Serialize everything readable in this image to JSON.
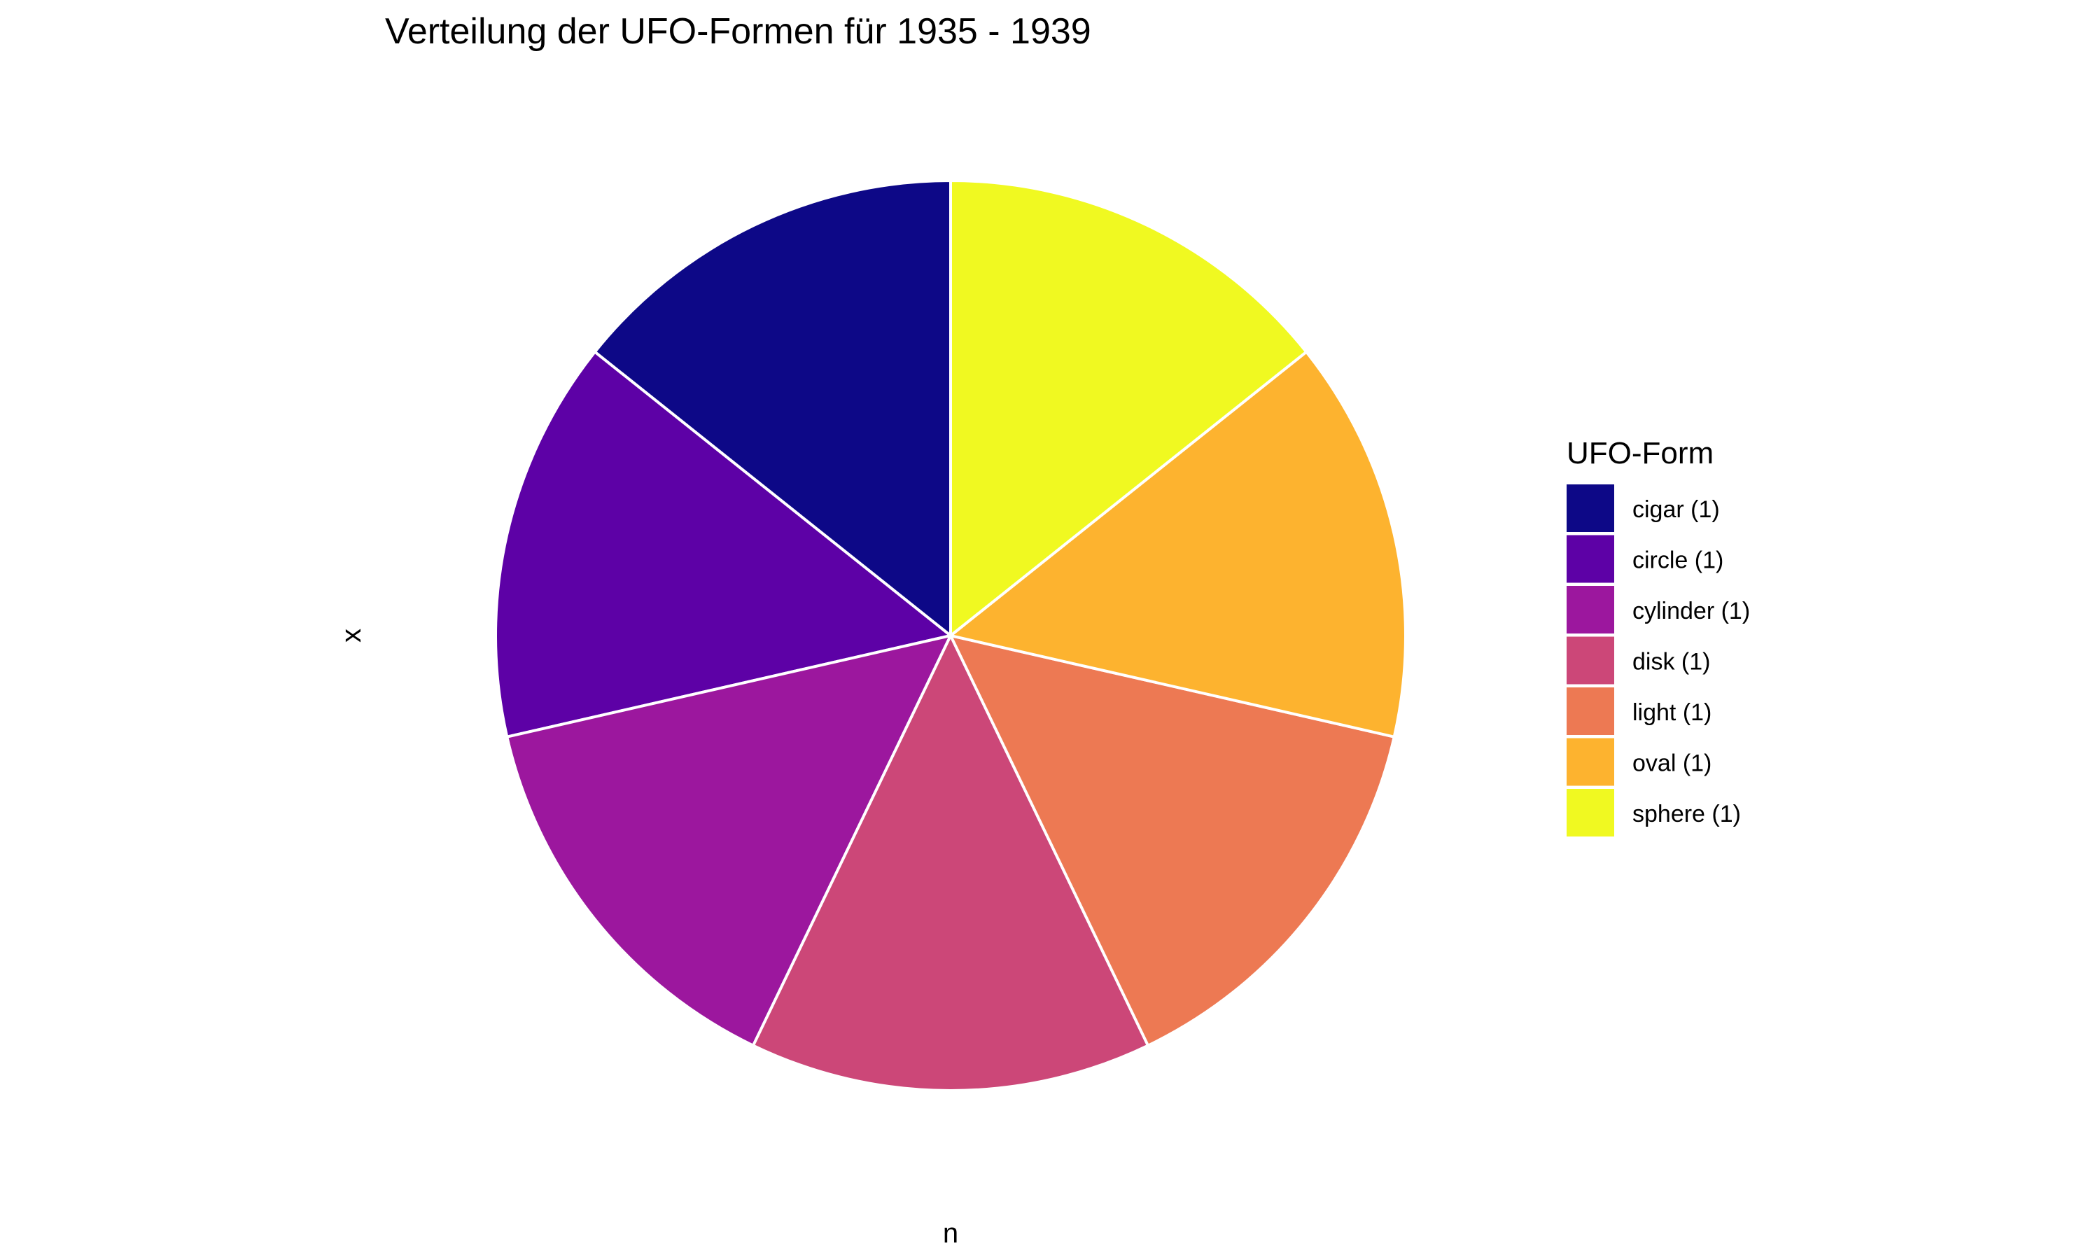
{
  "chart_data": {
    "type": "pie",
    "title": "Verteilung der UFO-Formen für 1935 - 1939",
    "xlabel": "n",
    "ylabel": "x",
    "legend_title": "UFO-Form",
    "legend_position": "right",
    "slices": [
      {
        "category": "cigar",
        "label": "cigar (1)",
        "value": 1,
        "color": "#0D0887"
      },
      {
        "category": "circle",
        "label": "circle (1)",
        "value": 1,
        "color": "#5D01A6"
      },
      {
        "category": "cylinder",
        "label": "cylinder (1)",
        "value": 1,
        "color": "#9C179E"
      },
      {
        "category": "disk",
        "label": "disk (1)",
        "value": 1,
        "color": "#CC4778"
      },
      {
        "category": "light",
        "label": "light (1)",
        "value": 1,
        "color": "#ED7953"
      },
      {
        "category": "oval",
        "label": "oval (1)",
        "value": 1,
        "color": "#FDB32F"
      },
      {
        "category": "sphere",
        "label": "sphere (1)",
        "value": 1,
        "color": "#F0F921"
      }
    ]
  }
}
